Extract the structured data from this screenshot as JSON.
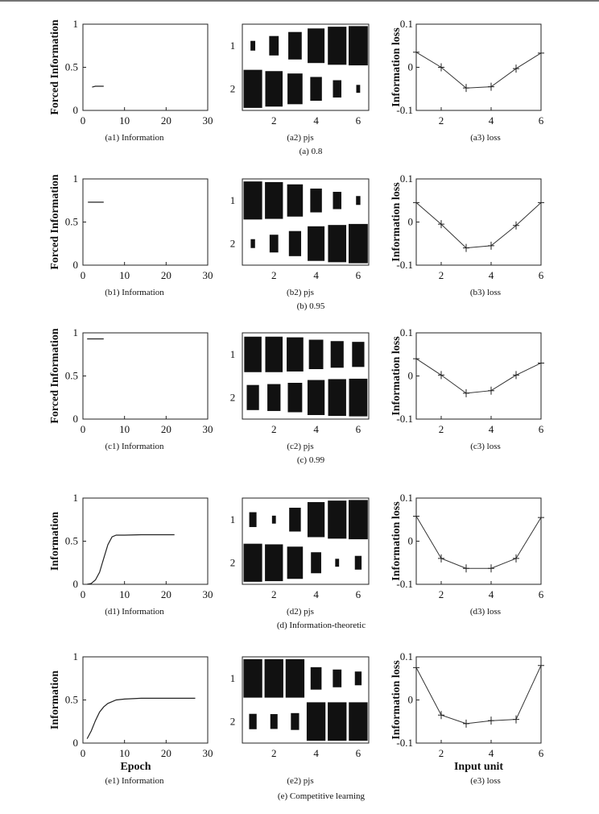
{
  "chart_data": [
    {
      "id": "a",
      "caption": "(a) 0.8",
      "panels": {
        "info": {
          "type": "line",
          "caption": "(a1) Information",
          "ylabel": "Forced Information",
          "xlabel": "",
          "xlim": [
            0,
            30
          ],
          "ylim": [
            0,
            1
          ],
          "xticks": [
            "0",
            "10",
            "20",
            "30"
          ],
          "yticks": [
            "0",
            "0.5",
            "1"
          ],
          "x": [
            2.2,
            3,
            4,
            5
          ],
          "y": [
            0.27,
            0.28,
            0.28,
            0.28
          ]
        },
        "pjs": {
          "type": "heatmap",
          "caption": "(a2) pjs",
          "rows": [
            "1",
            "2"
          ],
          "xticks": [
            "2",
            "4",
            "6"
          ],
          "values": [
            [
              0.06,
              0.24,
              0.48,
              0.76,
              0.92,
              0.98
            ],
            [
              0.92,
              0.8,
              0.6,
              0.36,
              0.19,
              0.04
            ]
          ]
        },
        "loss": {
          "type": "line",
          "caption": "(a3) loss",
          "ylabel": "Information loss",
          "xlabel": "",
          "xlim": [
            1,
            6
          ],
          "ylim": [
            -0.1,
            0.1
          ],
          "xticks": [
            "2",
            "4",
            "6"
          ],
          "yticks": [
            "-0.1",
            "0",
            "0.1"
          ],
          "x": [
            1,
            2,
            3,
            4,
            5,
            6
          ],
          "y": [
            0.035,
            0.0,
            -0.048,
            -0.045,
            -0.003,
            0.033
          ]
        }
      }
    },
    {
      "id": "b",
      "caption": "(b) 0.95",
      "panels": {
        "info": {
          "type": "line",
          "caption": "(b1) Information",
          "ylabel": "Forced Information",
          "xlabel": "",
          "xlim": [
            0,
            30
          ],
          "ylim": [
            0,
            1
          ],
          "xticks": [
            "0",
            "10",
            "20",
            "30"
          ],
          "yticks": [
            "0",
            "0.5",
            "1"
          ],
          "x": [
            1.2,
            2,
            3,
            4,
            5
          ],
          "y": [
            0.73,
            0.73,
            0.73,
            0.73,
            0.73
          ]
        },
        "pjs": {
          "type": "heatmap",
          "caption": "(b2) pjs",
          "rows": [
            "1",
            "2"
          ],
          "xticks": [
            "2",
            "4",
            "6"
          ],
          "values": [
            [
              0.92,
              0.86,
              0.66,
              0.36,
              0.19,
              0.05
            ],
            [
              0.05,
              0.2,
              0.4,
              0.76,
              0.88,
              0.98
            ]
          ]
        },
        "loss": {
          "type": "line",
          "caption": "(b3) loss",
          "ylabel": "Information loss",
          "xlabel": "",
          "xlim": [
            1,
            6
          ],
          "ylim": [
            -0.1,
            0.1
          ],
          "xticks": [
            "2",
            "4",
            "6"
          ],
          "yticks": [
            "-0.1",
            "0",
            "0.1"
          ],
          "x": [
            1,
            2,
            3,
            4,
            5,
            6
          ],
          "y": [
            0.045,
            -0.005,
            -0.06,
            -0.055,
            -0.008,
            0.045
          ]
        }
      }
    },
    {
      "id": "c",
      "caption": "(c) 0.99",
      "panels": {
        "info": {
          "type": "line",
          "caption": "(c1) Information",
          "ylabel": "Forced Information",
          "xlabel": "",
          "xlim": [
            0,
            30
          ],
          "ylim": [
            0,
            1
          ],
          "xticks": [
            "0",
            "10",
            "20",
            "30"
          ],
          "yticks": [
            "0",
            "0.5",
            "1"
          ],
          "x": [
            1,
            2,
            3,
            4,
            5
          ],
          "y": [
            0.93,
            0.93,
            0.93,
            0.93,
            0.93
          ]
        },
        "pjs": {
          "type": "heatmap",
          "caption": "(c2) pjs",
          "rows": [
            "1",
            "2"
          ],
          "xticks": [
            "2",
            "4",
            "6"
          ],
          "values": [
            [
              0.8,
              0.8,
              0.74,
              0.55,
              0.45,
              0.4
            ],
            [
              0.4,
              0.46,
              0.55,
              0.78,
              0.86,
              0.9
            ]
          ]
        },
        "loss": {
          "type": "line",
          "caption": "(c3) loss",
          "ylabel": "Information loss",
          "xlabel": "",
          "xlim": [
            1,
            6
          ],
          "ylim": [
            -0.1,
            0.1
          ],
          "xticks": [
            "2",
            "4",
            "6"
          ],
          "yticks": [
            "-0.1",
            "0",
            "0.1"
          ],
          "x": [
            1,
            2,
            3,
            4,
            5,
            6
          ],
          "y": [
            0.04,
            0.002,
            -0.04,
            -0.034,
            0.002,
            0.03
          ]
        }
      }
    },
    {
      "id": "d",
      "caption": "(d) Information-theoretic",
      "panels": {
        "info": {
          "type": "line",
          "caption": "(d1) Information",
          "ylabel": "Information",
          "xlabel": "",
          "xlim": [
            0,
            30
          ],
          "ylim": [
            0,
            1
          ],
          "xticks": [
            "0",
            "10",
            "20",
            "30"
          ],
          "yticks": [
            "0",
            "0.5",
            "1"
          ],
          "x": [
            1,
            2,
            3,
            4,
            5,
            6,
            7,
            8,
            10,
            14,
            18,
            22
          ],
          "y": [
            0.0,
            0.01,
            0.05,
            0.14,
            0.3,
            0.46,
            0.55,
            0.57,
            0.57,
            0.575,
            0.575,
            0.575
          ]
        },
        "pjs": {
          "type": "heatmap",
          "caption": "(d2) pjs",
          "rows": [
            "1",
            "2"
          ],
          "xticks": [
            "2",
            "4",
            "6"
          ],
          "values": [
            [
              0.14,
              0.04,
              0.36,
              0.78,
              0.92,
              0.98
            ],
            [
              0.92,
              0.86,
              0.66,
              0.28,
              0.04,
              0.12
            ]
          ]
        },
        "loss": {
          "type": "line",
          "caption": "(d3) loss",
          "ylabel": "Information loss",
          "xlabel": "",
          "xlim": [
            1,
            6
          ],
          "ylim": [
            -0.1,
            0.1
          ],
          "xticks": [
            "2",
            "4",
            "6"
          ],
          "yticks": [
            "-0.1",
            "0",
            "0.1"
          ],
          "x": [
            1,
            2,
            3,
            4,
            5,
            6
          ],
          "y": [
            0.058,
            -0.04,
            -0.063,
            -0.063,
            -0.04,
            0.055
          ]
        }
      }
    },
    {
      "id": "e",
      "caption": "(e) Competitive learning",
      "panels": {
        "info": {
          "type": "line",
          "caption": "(e1) Information",
          "ylabel": "Information",
          "xlabel": "Epoch",
          "xlim": [
            0,
            30
          ],
          "ylim": [
            0,
            1
          ],
          "xticks": [
            "0",
            "10",
            "20",
            "30"
          ],
          "yticks": [
            "0",
            "0.5",
            "1"
          ],
          "x": [
            1,
            2,
            3,
            4,
            5,
            6,
            8,
            10,
            14,
            18,
            22,
            27
          ],
          "y": [
            0.05,
            0.14,
            0.26,
            0.36,
            0.42,
            0.46,
            0.5,
            0.51,
            0.52,
            0.52,
            0.52,
            0.52
          ]
        },
        "pjs": {
          "type": "heatmap",
          "caption": "(e2) pjs",
          "rows": [
            "1",
            "2"
          ],
          "xticks": [
            "2",
            "4",
            "6"
          ],
          "values": [
            [
              0.94,
              0.94,
              0.94,
              0.32,
              0.2,
              0.12
            ],
            [
              0.15,
              0.14,
              0.18,
              0.94,
              0.94,
              0.94
            ]
          ]
        },
        "loss": {
          "type": "line",
          "caption": "(e3) loss",
          "ylabel": "Information loss",
          "xlabel": "Input unit",
          "xlim": [
            1,
            6
          ],
          "ylim": [
            -0.1,
            0.1
          ],
          "xticks": [
            "2",
            "4",
            "6"
          ],
          "yticks": [
            "-0.1",
            "0",
            "0.1"
          ],
          "x": [
            1,
            2,
            3,
            4,
            5,
            6
          ],
          "y": [
            0.075,
            -0.035,
            -0.055,
            -0.048,
            -0.045,
            0.08
          ]
        }
      }
    }
  ]
}
